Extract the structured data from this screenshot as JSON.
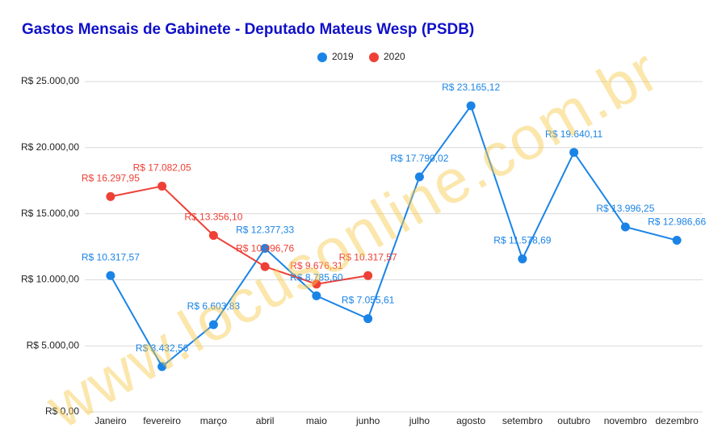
{
  "chart_data": {
    "type": "line",
    "title": "Gastos Mensais de Gabinete - Deputado Mateus Wesp (PSDB)",
    "watermark": "www.locusonline.com.br",
    "categories": [
      "Janeiro",
      "fevereiro",
      "março",
      "abril",
      "maio",
      "junho",
      "julho",
      "agosto",
      "setembro",
      "outubro",
      "novembro",
      "dezembro"
    ],
    "series": [
      {
        "name": "2019",
        "color": "#1a84e6",
        "values": [
          10317.57,
          3432.56,
          6603.83,
          12377.33,
          8785.6,
          7055.61,
          17790.02,
          23165.12,
          11578.69,
          19640.11,
          13996.25,
          12986.66
        ],
        "value_labels": [
          "R$ 10.317,57",
          "R$ 3.432,56",
          "R$ 6.603,83",
          "R$ 12.377,33",
          "R$ 8.785,60",
          "R$ 7.055,61",
          "R$ 17.790,02",
          "R$ 23.165,12",
          "R$ 11.578,69",
          "R$ 19.640,11",
          "R$ 13.996,25",
          "R$ 12.986,66"
        ]
      },
      {
        "name": "2020",
        "color": "#ee4036",
        "values": [
          16297.95,
          17082.05,
          13356.1,
          10996.76,
          9676.31,
          10317.57,
          null,
          null,
          null,
          null,
          null,
          null
        ],
        "value_labels": [
          "R$ 16.297,95",
          "R$ 17.082,05",
          "R$ 13.356,10",
          "R$ 10.996,76",
          "R$ 9.676,31",
          "R$ 10.317,57",
          null,
          null,
          null,
          null,
          null,
          null
        ]
      }
    ],
    "ylim": [
      0,
      25000
    ],
    "yticks": [
      {
        "value": 0,
        "label": "R$ 0,00"
      },
      {
        "value": 5000,
        "label": "R$ 5.000,00"
      },
      {
        "value": 10000,
        "label": "R$ 10.000,00"
      },
      {
        "value": 15000,
        "label": "R$ 15.000,00"
      },
      {
        "value": 20000,
        "label": "R$ 20.000,00"
      },
      {
        "value": 25000,
        "label": "R$ 25.000,00"
      }
    ],
    "grid": true,
    "legend": "top"
  }
}
